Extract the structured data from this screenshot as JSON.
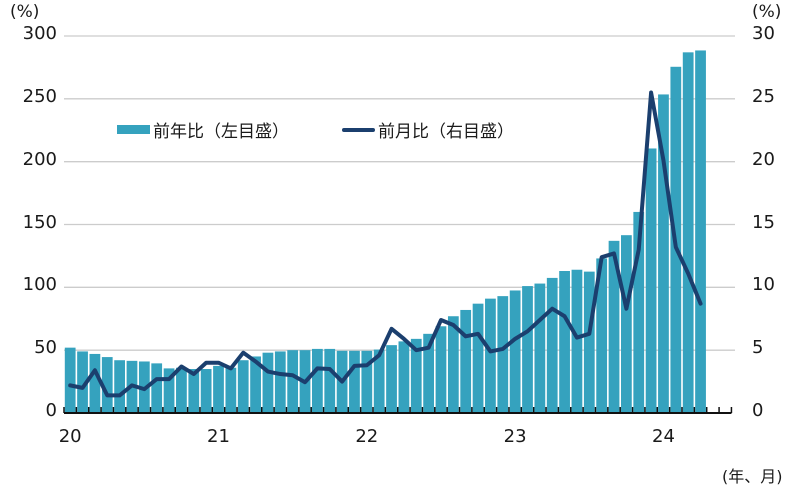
{
  "chart_data": {
    "type": "bar+line",
    "title": "",
    "xlabel": "(年、月)",
    "ylabel_left": "(%)",
    "ylabel_right": "(%)",
    "ylim_left": [
      0,
      300
    ],
    "ylim_right": [
      0,
      30
    ],
    "yticks_left": [
      "0",
      "50",
      "100",
      "150",
      "200",
      "250",
      "300"
    ],
    "yticks_right": [
      "0",
      "5",
      "10",
      "15",
      "20",
      "25",
      "30"
    ],
    "x_tick_labels": [
      {
        "label": "20",
        "index": 0
      },
      {
        "label": "21",
        "index": 12
      },
      {
        "label": "22",
        "index": 24
      },
      {
        "label": "23",
        "index": 36
      },
      {
        "label": "24",
        "index": 48
      }
    ],
    "total_slots": 54,
    "grid": true,
    "legend_position": "upper-left inside",
    "x": [
      "2020-01",
      "2020-02",
      "2020-03",
      "2020-04",
      "2020-05",
      "2020-06",
      "2020-07",
      "2020-08",
      "2020-09",
      "2020-10",
      "2020-11",
      "2020-12",
      "2021-01",
      "2021-02",
      "2021-03",
      "2021-04",
      "2021-05",
      "2021-06",
      "2021-07",
      "2021-08",
      "2021-09",
      "2021-10",
      "2021-11",
      "2021-12",
      "2022-01",
      "2022-02",
      "2022-03",
      "2022-04",
      "2022-05",
      "2022-06",
      "2022-07",
      "2022-08",
      "2022-09",
      "2022-10",
      "2022-11",
      "2022-12",
      "2023-01",
      "2023-02",
      "2023-03",
      "2023-04",
      "2023-05",
      "2023-06",
      "2023-07",
      "2023-08",
      "2023-09",
      "2023-10",
      "2023-11",
      "2023-12",
      "2024-01",
      "2024-02",
      "2024-03",
      "2024-04"
    ],
    "series": [
      {
        "name": "前年比（左目盛）",
        "type": "bar",
        "axis": "left",
        "color": "#35A2BE",
        "values": [
          52,
          49,
          47,
          44.5,
          42,
          41.5,
          41,
          39.5,
          35.5,
          36,
          35,
          35,
          37.5,
          36,
          42,
          45,
          48,
          49,
          50,
          50,
          51,
          51,
          49.5,
          49.5,
          49.5,
          50.5,
          54,
          57,
          59,
          63,
          69,
          77,
          82,
          87,
          91,
          93,
          97.5,
          101,
          103,
          107.5,
          113,
          114,
          112.5,
          123,
          137,
          141.5,
          160,
          210.5,
          253.5,
          275.5,
          287,
          288.5
        ]
      },
      {
        "name": "前月比（右目盛）",
        "type": "line",
        "axis": "right",
        "color": "#1B3F6E",
        "values": [
          2.2,
          2.0,
          3.4,
          1.4,
          1.4,
          2.2,
          1.9,
          2.7,
          2.7,
          3.7,
          3.1,
          4.0,
          4.0,
          3.55,
          4.8,
          4.1,
          3.3,
          3.1,
          3.0,
          2.45,
          3.55,
          3.5,
          2.5,
          3.75,
          3.8,
          4.6,
          6.7,
          5.9,
          5.0,
          5.2,
          7.4,
          7.0,
          6.1,
          6.3,
          4.9,
          5.1,
          5.9,
          6.5,
          7.4,
          8.3,
          7.7,
          6.0,
          6.3,
          12.4,
          12.7,
          8.3,
          13.0,
          25.5,
          20.1,
          13.2,
          11.1,
          8.7
        ]
      }
    ]
  },
  "labels": {
    "left_unit": "(%)",
    "right_unit": "(%)",
    "x_unit": "(年、月)",
    "legend_bar": "前年比（左目盛）",
    "legend_line": "前月比（右目盛）"
  },
  "colors": {
    "bar": "#35A2BE",
    "line": "#1B3F6E",
    "grid": "#CCCCCC",
    "axis": "#111111"
  }
}
